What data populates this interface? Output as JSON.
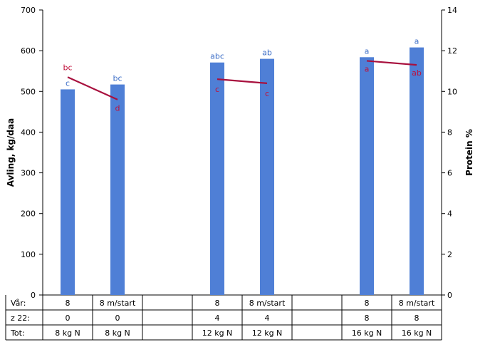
{
  "colors": {
    "bar": "#4F7FD6",
    "protein_line": "#A8103E",
    "bar_label": "#3E6FC7",
    "protein_label": "#C0103A"
  },
  "chart_data": {
    "type": "bar",
    "title": "",
    "ylabel": "Avling, kg/daa",
    "y2label": "Protein %",
    "ylim": [
      0,
      700
    ],
    "y2lim": [
      0,
      14
    ],
    "yticks": [
      0,
      100,
      200,
      300,
      400,
      500,
      600,
      700
    ],
    "y2ticks": [
      0,
      2,
      4,
      6,
      8,
      10,
      12,
      14
    ],
    "grid": false,
    "legend": "none",
    "table_rows": [
      {
        "label": "Vår:",
        "values": [
          "8",
          "8 m/start",
          "",
          "8",
          "8 m/start",
          "",
          "8",
          "8 m/start"
        ]
      },
      {
        "label": "z 22:",
        "values": [
          "0",
          "0",
          "",
          "4",
          "4",
          "",
          "8",
          "8"
        ]
      },
      {
        "label": "Tot:",
        "values": [
          "8 kg N",
          "8 kg N",
          "",
          "12 kg N",
          "12 kg N",
          "",
          "16 kg N",
          "16 kg N"
        ]
      }
    ],
    "bars": [
      {
        "slot": 0,
        "value": 505,
        "letter": "c"
      },
      {
        "slot": 1,
        "value": 517,
        "letter": "bc"
      },
      {
        "slot": 3,
        "value": 571,
        "letter": "abc"
      },
      {
        "slot": 4,
        "value": 580,
        "letter": "ab"
      },
      {
        "slot": 6,
        "value": 584,
        "letter": "a"
      },
      {
        "slot": 7,
        "value": 608,
        "letter": "a"
      }
    ],
    "protein_segments": [
      {
        "points": [
          {
            "slot": 0,
            "value": 10.7,
            "letter": "bc"
          },
          {
            "slot": 1,
            "value": 9.6,
            "letter": "d"
          }
        ]
      },
      {
        "points": [
          {
            "slot": 3,
            "value": 10.6,
            "letter": "c"
          },
          {
            "slot": 4,
            "value": 10.4,
            "letter": "c"
          }
        ]
      },
      {
        "points": [
          {
            "slot": 6,
            "value": 11.5,
            "letter": "a"
          },
          {
            "slot": 7,
            "value": 11.3,
            "letter": "ab"
          }
        ]
      }
    ]
  }
}
